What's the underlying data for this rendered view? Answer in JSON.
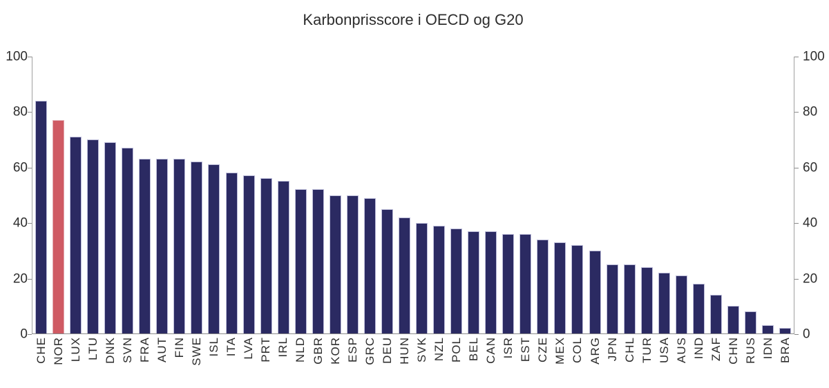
{
  "title": "Karbonprisscore i OECD og G20",
  "chart_data": {
    "type": "bar",
    "title": "Karbonprisscore i OECD og G20",
    "categories": [
      "CHE",
      "NOR",
      "LUX",
      "LTU",
      "DNK",
      "SVN",
      "FRA",
      "AUT",
      "FIN",
      "SWE",
      "ISL",
      "ITA",
      "LVA",
      "PRT",
      "IRL",
      "NLD",
      "GBR",
      "KOR",
      "ESP",
      "GRC",
      "DEU",
      "HUN",
      "SVK",
      "NZL",
      "POL",
      "BEL",
      "CAN",
      "ISR",
      "EST",
      "CZE",
      "MEX",
      "COL",
      "ARG",
      "JPN",
      "CHL",
      "TUR",
      "USA",
      "AUS",
      "IND",
      "ZAF",
      "CHN",
      "RUS",
      "IDN",
      "BRA"
    ],
    "values": [
      84,
      77,
      71,
      70,
      69,
      67,
      63,
      63,
      63,
      62,
      61,
      58,
      57,
      56,
      55,
      52,
      52,
      50,
      50,
      49,
      45,
      42,
      40,
      39,
      38,
      37,
      37,
      36,
      36,
      34,
      33,
      32,
      30,
      25,
      25,
      24,
      22,
      21,
      18,
      14,
      10,
      8,
      3,
      2
    ],
    "highlight_category": "NOR",
    "xlabel": "",
    "ylabel": "",
    "ylim": [
      0,
      100
    ],
    "yticks": [
      0,
      20,
      40,
      60,
      80,
      100
    ],
    "y_axis_sides": [
      "left",
      "right"
    ],
    "x_label_rotation": 90,
    "grid": "off",
    "legend": "none",
    "colors": {
      "bar": "#2b2a62",
      "bar_border": "#bcbcd9",
      "highlight": "#cf5a63",
      "highlight_border": "#e2a9b0",
      "axis": "#8a8a8a",
      "text": "#2d2d2d"
    }
  }
}
